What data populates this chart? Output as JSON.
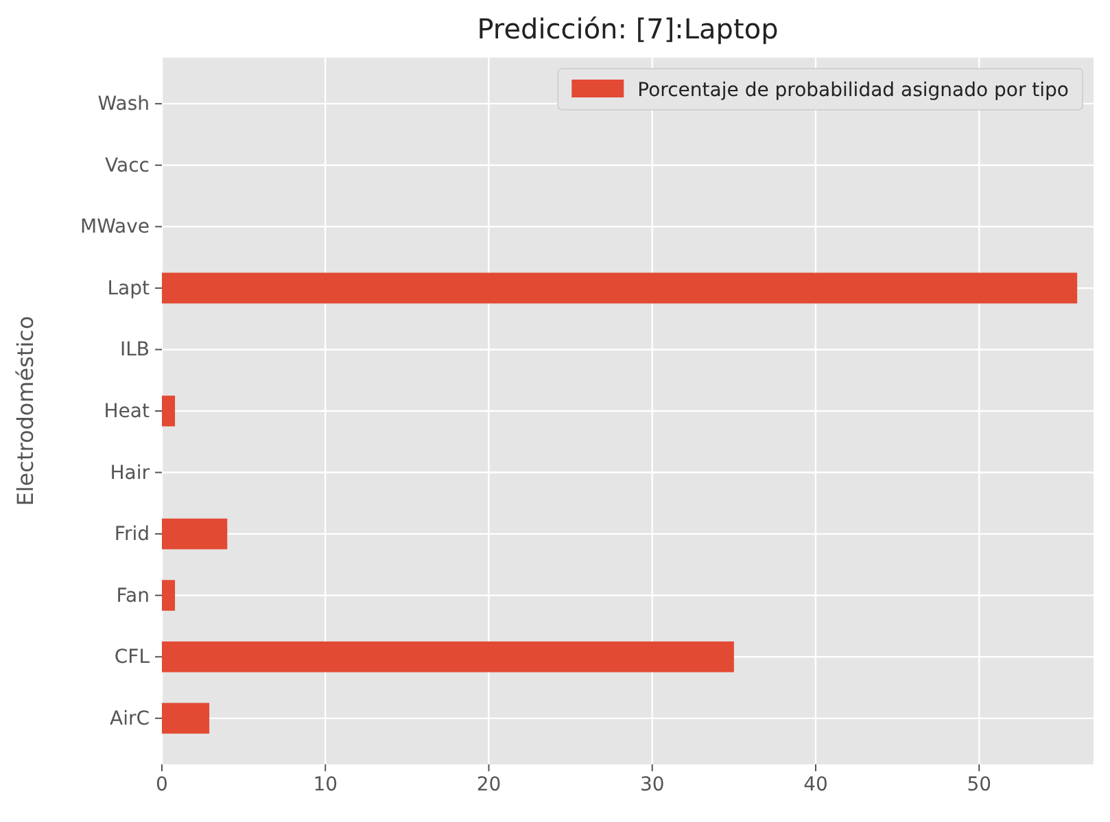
{
  "chart_data": {
    "type": "bar",
    "orientation": "horizontal",
    "title": "Predicción: [7]:Laptop",
    "ylabel": "Electrodoméstico",
    "categories": [
      "Wash",
      "Vacc",
      "MWave",
      "Lapt",
      "ILB",
      "Heat",
      "Hair",
      "Frid",
      "Fan",
      "CFL",
      "AirC"
    ],
    "series": [
      {
        "name": "Porcentaje de probabilidad asignado por tipo",
        "color": "#e24a33",
        "values": [
          0,
          0,
          0,
          56,
          0,
          0.8,
          0,
          4,
          0.8,
          35,
          2.9
        ]
      }
    ],
    "xlim": [
      0,
      57
    ],
    "xticks": [
      0,
      10,
      20,
      30,
      40,
      50
    ],
    "grid": true,
    "legend": "top right"
  }
}
